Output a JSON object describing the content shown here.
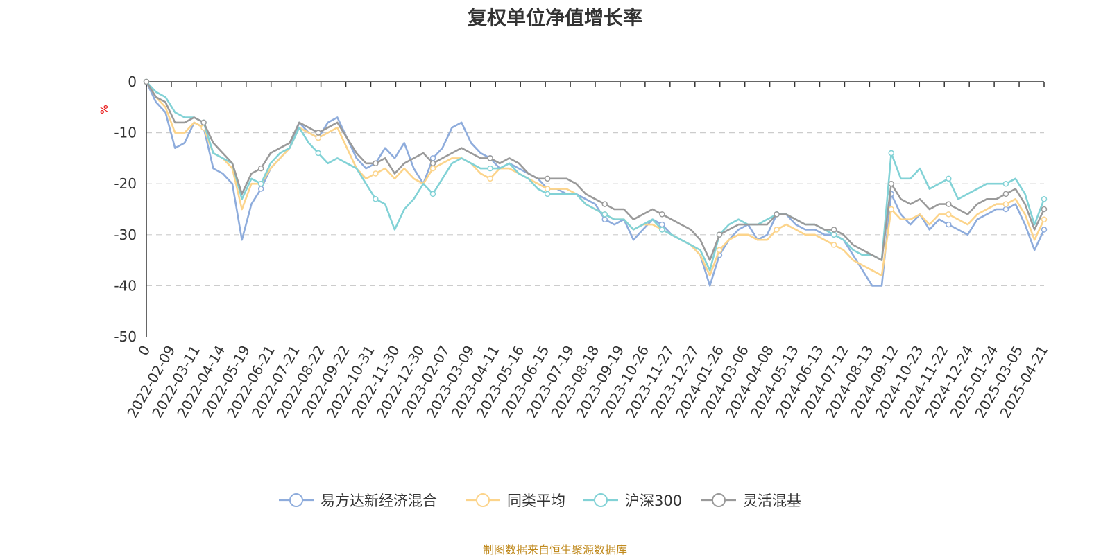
{
  "chart_data": {
    "type": "line",
    "title": "复权单位净值增长率",
    "ylabel": "%",
    "ylim": [
      -50,
      0
    ],
    "yticks": [
      0,
      -10,
      -20,
      -30,
      -40,
      -50
    ],
    "x_tick_labels": [
      "0",
      "2022-02-09",
      "2022-03-11",
      "2022-04-14",
      "2022-05-19",
      "2022-06-21",
      "2022-07-21",
      "2022-08-22",
      "2022-09-22",
      "2022-10-31",
      "2022-11-30",
      "2022-12-30",
      "2023-02-07",
      "2023-03-09",
      "2023-04-11",
      "2023-05-16",
      "2023-06-15",
      "2023-07-19",
      "2023-08-18",
      "2023-09-19",
      "2023-10-26",
      "2023-11-27",
      "2023-12-27",
      "2024-01-26",
      "2024-03-06",
      "2024-04-08",
      "2024-05-13",
      "2024-06-13",
      "2024-07-12",
      "2024-08-13",
      "2024-09-12",
      "2024-10-23",
      "2024-11-22",
      "2024-12-24",
      "2025-01-24",
      "2025-03-05",
      "2025-04-21"
    ],
    "grid": true,
    "legend_position": "bottom",
    "series": [
      {
        "name": "易方达新经济混合",
        "color": "#8eacdc",
        "values": [
          0,
          -4,
          -6,
          -13,
          -12,
          -8,
          -9,
          -17,
          -18,
          -20,
          -31,
          -24,
          -21,
          -17,
          -15,
          -13,
          -8,
          -10,
          -11,
          -8,
          -7,
          -11,
          -15,
          -17,
          -16,
          -13,
          -15,
          -12,
          -17,
          -20,
          -15,
          -13,
          -9,
          -8,
          -12,
          -14,
          -15,
          -17,
          -16,
          -17,
          -18,
          -19,
          -21,
          -21,
          -22,
          -22,
          -23,
          -24,
          -27,
          -28,
          -27,
          -31,
          -29,
          -27,
          -28,
          -30,
          -31,
          -32,
          -34,
          -40,
          -34,
          -31,
          -29,
          -28,
          -31,
          -30,
          -26,
          -26,
          -28,
          -29,
          -29,
          -30,
          -30,
          -31,
          -34,
          -37,
          -40,
          -40,
          -22,
          -26,
          -28,
          -26,
          -29,
          -27,
          -28,
          -29,
          -30,
          -27,
          -26,
          -25,
          -25,
          -24,
          -28,
          -33,
          -29
        ]
      },
      {
        "name": "同类平均",
        "color": "#fcd48b",
        "values": [
          0,
          -3,
          -5,
          -10,
          -10,
          -8,
          -9,
          -14,
          -15,
          -17,
          -25,
          -20,
          -20,
          -17,
          -15,
          -13,
          -9,
          -10,
          -11,
          -10,
          -9,
          -13,
          -17,
          -19,
          -18,
          -17,
          -19,
          -17,
          -19,
          -20,
          -17,
          -16,
          -15,
          -15,
          -16,
          -18,
          -19,
          -17,
          -17,
          -18,
          -19,
          -20,
          -21,
          -21,
          -21,
          -22,
          -24,
          -25,
          -26,
          -27,
          -27,
          -29,
          -28,
          -28,
          -29,
          -30,
          -31,
          -32,
          -34,
          -38,
          -33,
          -31,
          -30,
          -30,
          -31,
          -31,
          -29,
          -28,
          -29,
          -30,
          -30,
          -31,
          -32,
          -33,
          -35,
          -36,
          -37,
          -38,
          -25,
          -27,
          -27,
          -26,
          -28,
          -26,
          -26,
          -27,
          -28,
          -26,
          -25,
          -24,
          -24,
          -23,
          -26,
          -31,
          -27
        ]
      },
      {
        "name": "沪深300",
        "color": "#82d2d6",
        "values": [
          0,
          -2,
          -3,
          -6,
          -7,
          -7,
          -8,
          -14,
          -15,
          -16,
          -23,
          -19,
          -20,
          -16,
          -14,
          -13,
          -9,
          -12,
          -14,
          -16,
          -15,
          -16,
          -17,
          -20,
          -23,
          -24,
          -29,
          -25,
          -23,
          -20,
          -22,
          -19,
          -16,
          -15,
          -16,
          -17,
          -17,
          -17,
          -16,
          -18,
          -19,
          -21,
          -22,
          -22,
          -22,
          -22,
          -24,
          -25,
          -26,
          -27,
          -27,
          -29,
          -28,
          -27,
          -29,
          -30,
          -31,
          -32,
          -33,
          -37,
          -30,
          -28,
          -27,
          -28,
          -28,
          -27,
          -26,
          -26,
          -27,
          -28,
          -28,
          -29,
          -30,
          -31,
          -33,
          -34,
          -34,
          -35,
          -14,
          -19,
          -19,
          -17,
          -21,
          -20,
          -19,
          -23,
          -22,
          -21,
          -20,
          -20,
          -20,
          -19,
          -22,
          -28,
          -23
        ]
      },
      {
        "name": "灵活混基",
        "color": "#9a9a9a",
        "values": [
          0,
          -3,
          -4,
          -8,
          -8,
          -7,
          -8,
          -12,
          -14,
          -16,
          -22,
          -18,
          -17,
          -14,
          -13,
          -12,
          -8,
          -9,
          -10,
          -9,
          -8,
          -11,
          -14,
          -16,
          -16,
          -15,
          -18,
          -16,
          -15,
          -14,
          -16,
          -15,
          -14,
          -13,
          -14,
          -15,
          -15,
          -16,
          -15,
          -16,
          -18,
          -19,
          -19,
          -19,
          -19,
          -20,
          -22,
          -23,
          -24,
          -25,
          -25,
          -27,
          -26,
          -25,
          -26,
          -27,
          -28,
          -29,
          -31,
          -35,
          -30,
          -29,
          -28,
          -28,
          -28,
          -28,
          -26,
          -26,
          -27,
          -28,
          -28,
          -29,
          -29,
          -30,
          -32,
          -33,
          -34,
          -35,
          -20,
          -23,
          -24,
          -23,
          -25,
          -24,
          -24,
          -25,
          -26,
          -24,
          -23,
          -23,
          -22,
          -21,
          -24,
          -29,
          -25
        ]
      }
    ]
  },
  "legend": {
    "items": [
      "易方达新经济混合",
      "同类平均",
      "沪深300",
      "灵活混基"
    ]
  },
  "footnote": "制图数据来自恒生聚源数据库"
}
